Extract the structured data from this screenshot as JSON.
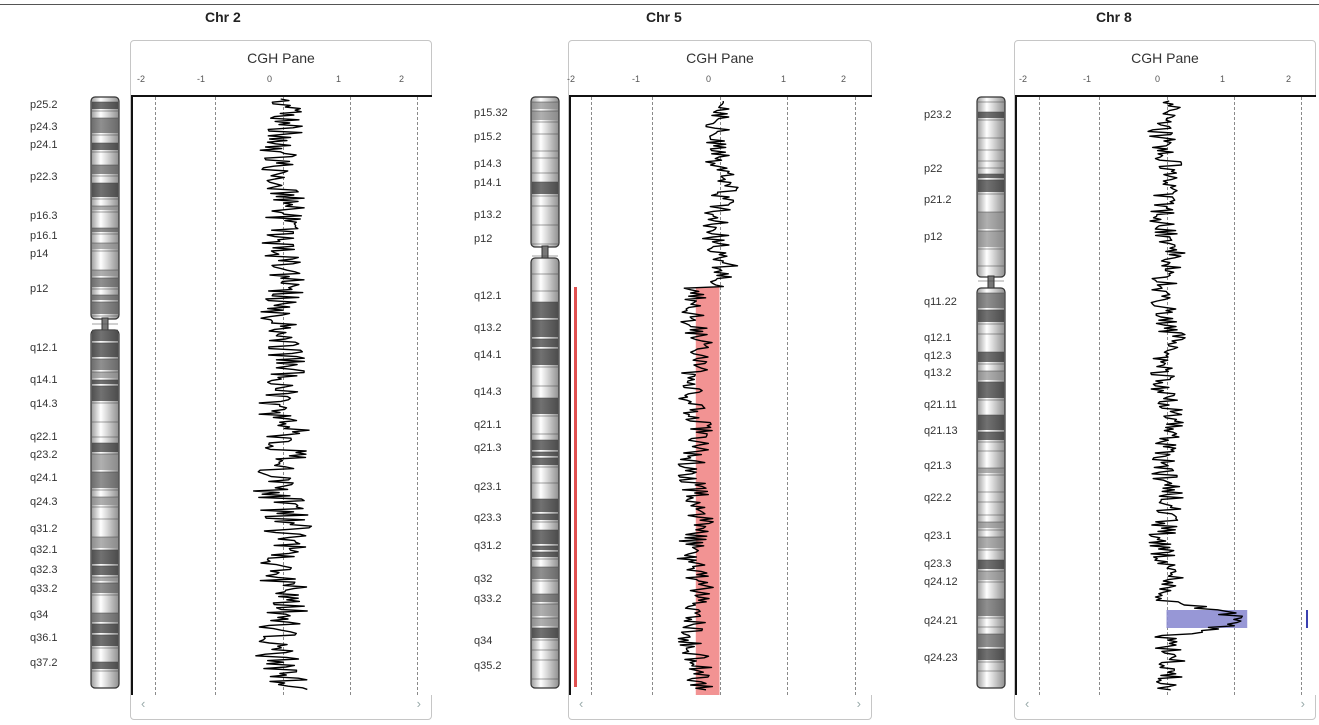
{
  "pane_title": "CGH Pane",
  "ticks": [
    "-2",
    "-1",
    "0",
    "1",
    "2"
  ],
  "nav": {
    "left_icon": "‹",
    "right_icon": "›"
  },
  "colors": {
    "loss": "#f08080",
    "gain": "#8c8cd2",
    "trace": "#000000",
    "gain_marker": "#3a40b0"
  },
  "chromosomes": [
    {
      "title": "Chr 2",
      "bands": [
        "p25.2",
        "p24.3",
        "p24.1",
        "p22.3",
        "p16.3",
        "p16.1",
        "p14",
        "p12",
        "q12.1",
        "q14.1",
        "q14.3",
        "q22.1",
        "q23.2",
        "q24.1",
        "q24.3",
        "q31.2",
        "q32.1",
        "q32.3",
        "q33.2",
        "q34",
        "q36.1",
        "q37.2"
      ],
      "aberration": null
    },
    {
      "title": "Chr 5",
      "bands": [
        "p15.32",
        "p15.2",
        "p14.3",
        "p14.1",
        "p13.2",
        "p12",
        "q12.1",
        "q13.2",
        "q14.1",
        "q14.3",
        "q21.1",
        "q21.3",
        "q23.1",
        "q23.3",
        "q31.2",
        "q32",
        "q33.2",
        "q34",
        "q35.2"
      ],
      "aberration": {
        "type": "loss",
        "log2_ratio": -0.35,
        "start_band": "q12.1",
        "end_band": "q35.2"
      }
    },
    {
      "title": "Chr 8",
      "bands": [
        "p23.2",
        "p22",
        "p21.2",
        "p12",
        "q11.22",
        "q12.1",
        "q12.3",
        "q13.2",
        "q21.11",
        "q21.13",
        "q21.3",
        "q22.2",
        "q23.1",
        "q23.3",
        "q24.12",
        "q24.21",
        "q24.23"
      ],
      "aberration": {
        "type": "gain",
        "log2_ratio": 1.2,
        "band": "q24.21"
      }
    }
  ]
}
